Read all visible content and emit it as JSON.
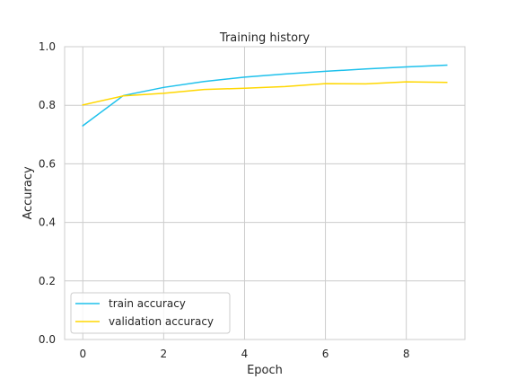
{
  "chart_data": {
    "type": "line",
    "title": "Training history",
    "xlabel": "Epoch",
    "ylabel": "Accuracy",
    "xlim": [
      -0.45,
      9.45
    ],
    "ylim": [
      0.0,
      1.0
    ],
    "x": [
      0,
      1,
      2,
      3,
      4,
      5,
      6,
      7,
      8,
      9
    ],
    "xticks": [
      0,
      2,
      4,
      6,
      8
    ],
    "xtick_labels": [
      "0",
      "2",
      "4",
      "6",
      "8"
    ],
    "yticks": [
      0.0,
      0.2,
      0.4,
      0.6,
      0.8,
      1.0
    ],
    "ytick_labels": [
      "0.0",
      "0.2",
      "0.4",
      "0.6",
      "0.8",
      "1.0"
    ],
    "grid": true,
    "legend_position": "lower-left",
    "series": [
      {
        "name": "train accuracy",
        "color": "#1ec1ec",
        "values": [
          0.73,
          0.833,
          0.861,
          0.881,
          0.896,
          0.907,
          0.916,
          0.924,
          0.931,
          0.937
        ]
      },
      {
        "name": "validation accuracy",
        "color": "#ffd700",
        "values": [
          0.801,
          0.832,
          0.841,
          0.854,
          0.858,
          0.864,
          0.874,
          0.873,
          0.88,
          0.878
        ]
      }
    ]
  }
}
